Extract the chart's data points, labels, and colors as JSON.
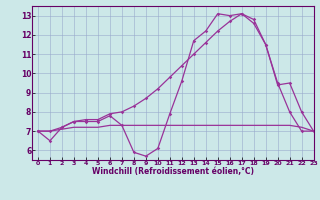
{
  "xlabel": "Windchill (Refroidissement éolien,°C)",
  "bg_color": "#cce8e8",
  "grid_color": "#99aacc",
  "line_color": "#993399",
  "line1_x": [
    0,
    1,
    2,
    3,
    4,
    5,
    6,
    7,
    8,
    9,
    10,
    11,
    12,
    13,
    14,
    15,
    16,
    17,
    18,
    19,
    20,
    21,
    22,
    23
  ],
  "line1_y": [
    7.0,
    6.5,
    7.2,
    7.5,
    7.5,
    7.5,
    7.8,
    7.3,
    5.9,
    5.7,
    6.1,
    7.9,
    9.6,
    11.7,
    12.2,
    13.1,
    13.0,
    13.1,
    12.6,
    11.5,
    9.4,
    9.5,
    8.0,
    7.0
  ],
  "line2_x": [
    0,
    1,
    2,
    3,
    4,
    5,
    6,
    7,
    8,
    9,
    10,
    11,
    12,
    13,
    14,
    15,
    16,
    17,
    18,
    19,
    20,
    21,
    22,
    23
  ],
  "line2_y": [
    7.0,
    7.0,
    7.2,
    7.5,
    7.6,
    7.6,
    7.9,
    8.0,
    8.3,
    8.7,
    9.2,
    9.8,
    10.4,
    11.0,
    11.6,
    12.2,
    12.7,
    13.1,
    12.8,
    11.5,
    9.5,
    8.0,
    7.0,
    7.0
  ],
  "line3_x": [
    0,
    1,
    2,
    3,
    4,
    5,
    6,
    7,
    8,
    9,
    10,
    11,
    12,
    13,
    14,
    15,
    16,
    17,
    18,
    19,
    20,
    21,
    22,
    23
  ],
  "line3_y": [
    7.0,
    7.0,
    7.1,
    7.2,
    7.2,
    7.2,
    7.3,
    7.3,
    7.3,
    7.3,
    7.3,
    7.3,
    7.3,
    7.3,
    7.3,
    7.3,
    7.3,
    7.3,
    7.3,
    7.3,
    7.3,
    7.3,
    7.2,
    7.0
  ],
  "xlim": [
    -0.5,
    23
  ],
  "ylim": [
    5.5,
    13.5
  ],
  "yticks": [
    6,
    7,
    8,
    9,
    10,
    11,
    12,
    13
  ],
  "xticks": [
    0,
    1,
    2,
    3,
    4,
    5,
    6,
    7,
    8,
    9,
    10,
    11,
    12,
    13,
    14,
    15,
    16,
    17,
    18,
    19,
    20,
    21,
    22,
    23
  ]
}
